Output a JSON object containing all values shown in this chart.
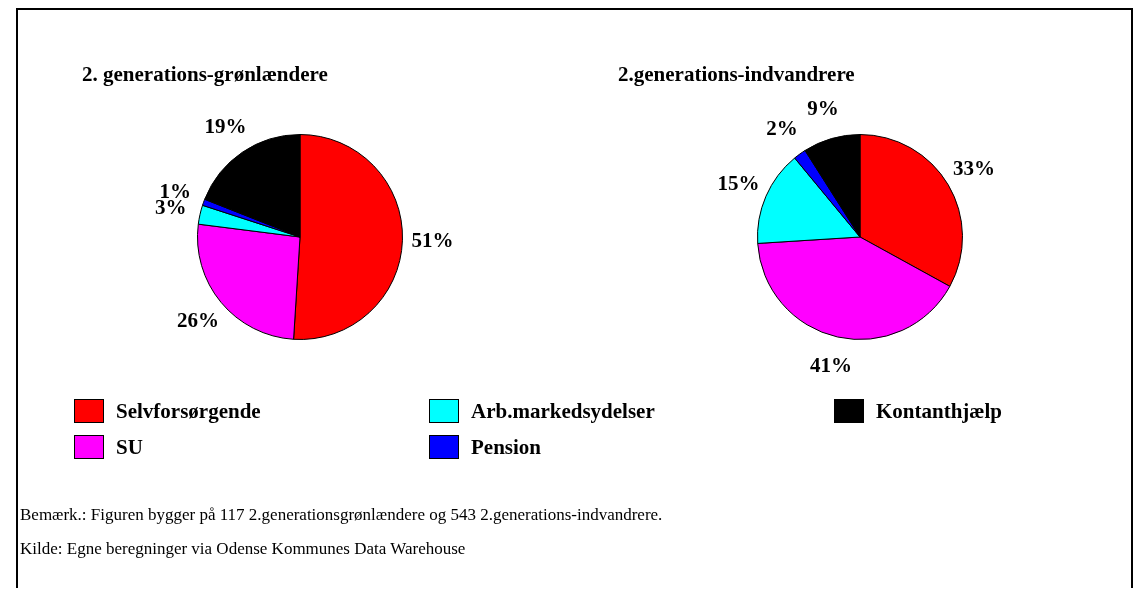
{
  "chart_data": [
    {
      "type": "pie",
      "title": "2. generations-grønlændere",
      "categories": [
        "Selvforsørgende",
        "SU",
        "Arb.markedsydelser",
        "Pension",
        "Kontanthjælp"
      ],
      "values": [
        51,
        26,
        3,
        1,
        19
      ],
      "colors": [
        "#ff0000",
        "#ff00ff",
        "#00ffff",
        "#0000ff",
        "#000000"
      ],
      "value_labels": [
        "51%",
        "26%",
        "3%",
        "1%",
        "19%"
      ],
      "legend": "bottom",
      "annotations": [
        "Bemærk.: Figuren bygger på 117 2.generationsgrønlændere og 543 2.generations-indvandrere.",
        "Kilde: Egne beregninger via Odense Kommunes Data Warehouse"
      ]
    },
    {
      "type": "pie",
      "title": "2.generations-indvandrere",
      "categories": [
        null,
        null,
        null,
        null,
        null
      ],
      "values": [
        33,
        41,
        15,
        2,
        9
      ],
      "colors": [
        "#ff0000",
        "#ff00ff",
        "#00ffff",
        "#0000ff",
        "#000000"
      ],
      "value_labels": [
        "33%",
        "41%",
        "15%",
        "2%",
        "9%"
      ]
    }
  ]
}
